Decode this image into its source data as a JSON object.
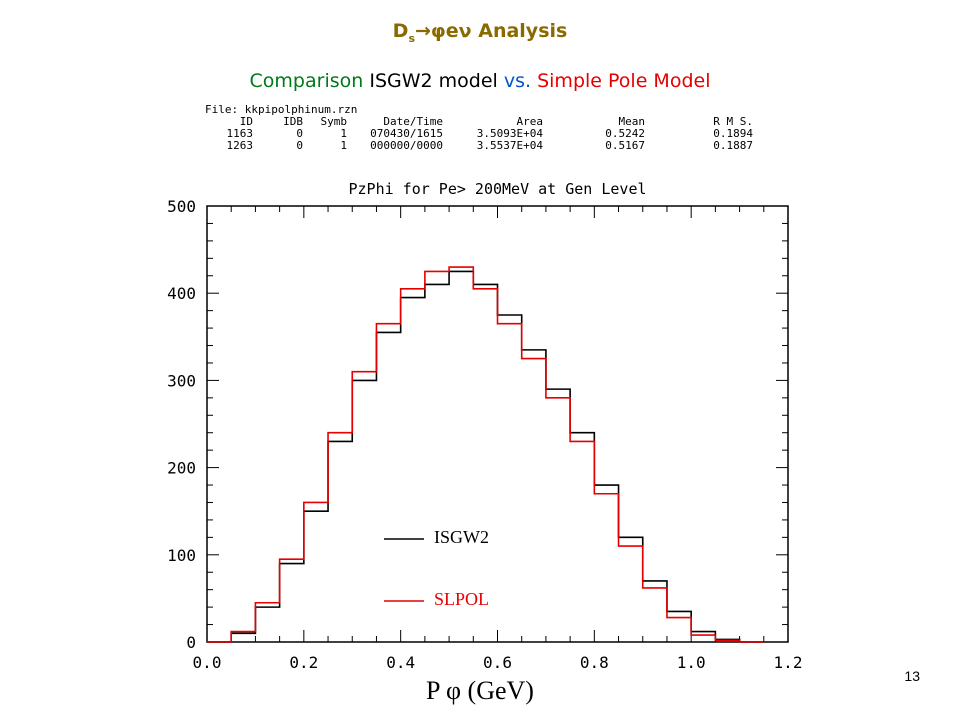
{
  "slide": {
    "title_prefix": "D",
    "title_sub": "s",
    "title_rest": "→φeν Analysis",
    "subtitle_parts": [
      "Comparison",
      "ISGW2 model",
      "vs.",
      "Simple Pole Model"
    ],
    "page_number": "13"
  },
  "info_table": {
    "file_line": "File: kkpipolphinum.rzn",
    "headers": [
      "ID",
      "IDB",
      "Symb",
      "Date/Time",
      "Area",
      "Mean",
      "R M S."
    ],
    "rows": [
      [
        "1163",
        "0",
        "1",
        "070430/1615",
        "3.5093E+04",
        "0.5242",
        "0.1894"
      ],
      [
        "1263",
        "0",
        "1",
        "000000/0000",
        "3.5537E+04",
        "0.5167",
        "0.1887"
      ]
    ]
  },
  "chart_data": {
    "type": "line",
    "title": "PzPhi for Pe> 200MeV at Gen Level",
    "xlabel": "P φ (GeV)",
    "ylabel": "",
    "xlim": [
      0.0,
      1.2
    ],
    "ylim": [
      0,
      500
    ],
    "x_ticks": [
      "0.0",
      "0.2",
      "0.4",
      "0.6",
      "0.8",
      "1.0",
      "1.2"
    ],
    "y_ticks": [
      "0",
      "100",
      "200",
      "300",
      "400",
      "500"
    ],
    "legend_position": "inside lower-left",
    "x": [
      0.0,
      0.05,
      0.1,
      0.15,
      0.2,
      0.25,
      0.3,
      0.35,
      0.4,
      0.45,
      0.5,
      0.55,
      0.6,
      0.65,
      0.7,
      0.75,
      0.8,
      0.85,
      0.9,
      0.95,
      1.0,
      1.05,
      1.1
    ],
    "series": [
      {
        "name": "ISGW2",
        "color": "#000000",
        "values": [
          0,
          10,
          40,
          90,
          150,
          230,
          300,
          355,
          395,
          410,
          425,
          410,
          375,
          335,
          290,
          240,
          180,
          120,
          70,
          35,
          12,
          3,
          0
        ]
      },
      {
        "name": "SLPOL",
        "color": "#e60000",
        "values": [
          0,
          12,
          45,
          95,
          160,
          240,
          310,
          365,
          405,
          425,
          430,
          405,
          365,
          325,
          280,
          230,
          170,
          110,
          62,
          28,
          8,
          2,
          0
        ]
      }
    ]
  }
}
